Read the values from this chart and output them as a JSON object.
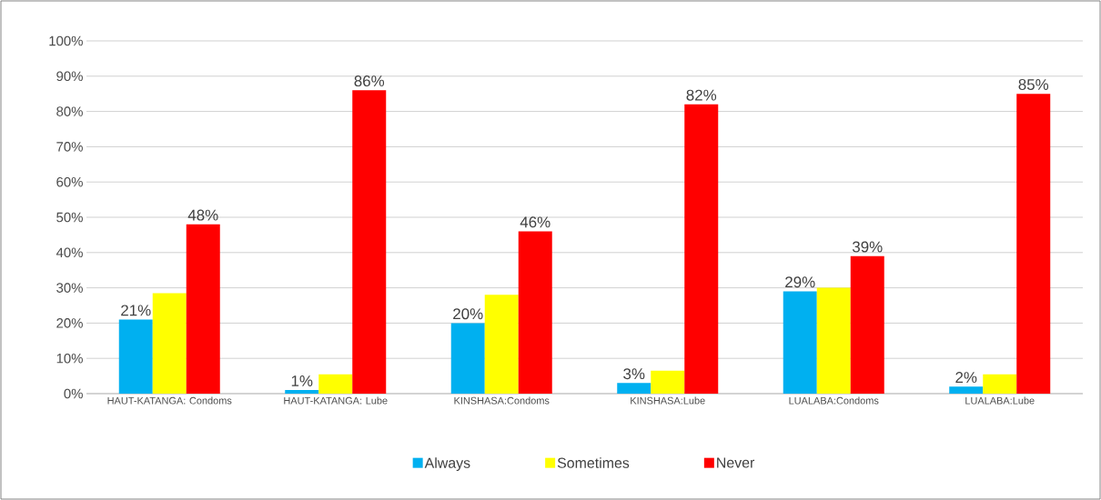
{
  "chart_data": {
    "type": "bar",
    "categories": [
      "HAUT-KATANGA: Condoms",
      "HAUT-KATANGA: Lube",
      "KINSHASA:Condoms",
      "KINSHASA:Lube",
      "LUALABA:Condoms",
      "LUALABA:Lube"
    ],
    "series": [
      {
        "name": "Always",
        "color": "#00b0f0",
        "values": [
          21,
          1,
          20,
          3,
          29,
          2
        ],
        "value_labels": [
          "21%",
          "1%",
          "20%",
          "3%",
          "29%",
          "2%"
        ]
      },
      {
        "name": "Sometimes",
        "color": "#ffff00",
        "values": [
          28.5,
          5.5,
          28,
          6.5,
          30,
          5.5
        ]
      },
      {
        "name": "Never",
        "color": "#ff0000",
        "values": [
          48,
          86,
          46,
          82,
          39,
          85
        ],
        "value_labels": [
          "48%",
          "86%",
          "46%",
          "82%",
          "39%",
          "85%"
        ]
      }
    ],
    "ylim": [
      0,
      100
    ],
    "yticks": [
      {
        "value": 0,
        "label": "0%"
      },
      {
        "value": 10,
        "label": "10%"
      },
      {
        "value": 20,
        "label": "20%"
      },
      {
        "value": 30,
        "label": "30%"
      },
      {
        "value": 40,
        "label": "40%"
      },
      {
        "value": 50,
        "label": "50%"
      },
      {
        "value": 60,
        "label": "60%"
      },
      {
        "value": 70,
        "label": "70%"
      },
      {
        "value": 80,
        "label": "80%"
      },
      {
        "value": 90,
        "label": "90%"
      },
      {
        "value": 100,
        "label": "100%"
      }
    ],
    "grid": "y",
    "legend": "bottom"
  }
}
